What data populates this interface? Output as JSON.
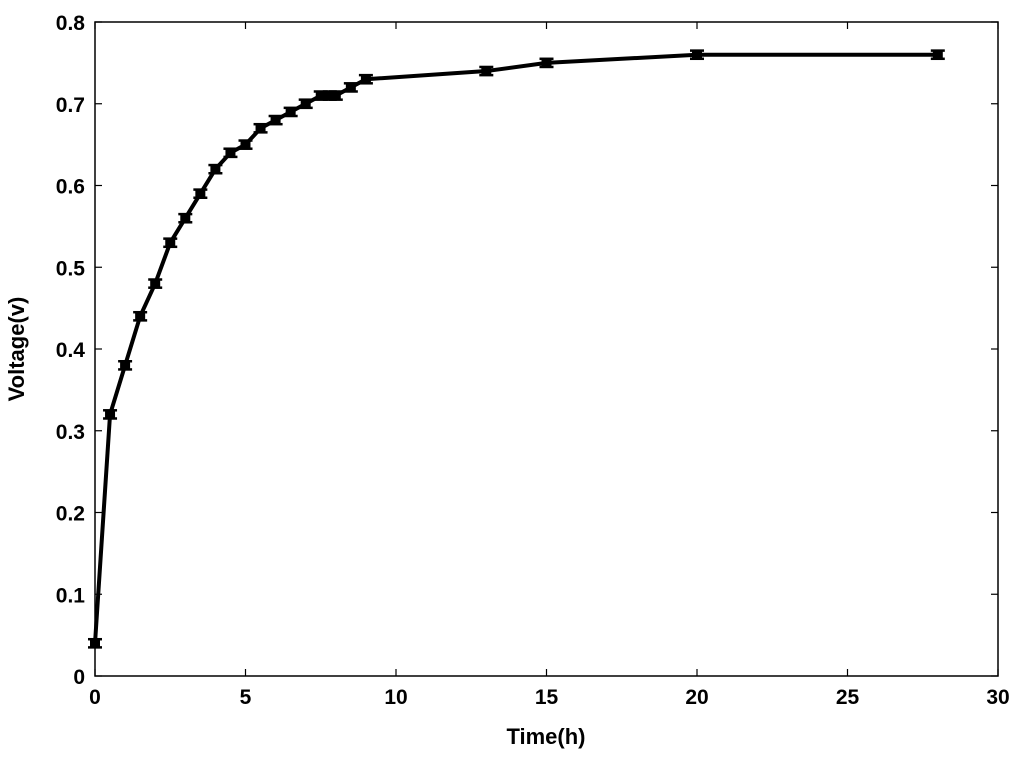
{
  "chart_data": {
    "type": "line",
    "title": "",
    "xlabel": "Time(h)",
    "ylabel": "Voltage(v)",
    "xlim": [
      0,
      30
    ],
    "ylim": [
      0,
      0.8
    ],
    "xticks": [
      0,
      5,
      10,
      15,
      20,
      25,
      30
    ],
    "yticks": [
      0,
      0.1,
      0.2,
      0.3,
      0.4,
      0.5,
      0.6,
      0.7,
      0.8
    ],
    "xtick_labels": [
      "0",
      "5",
      "10",
      "15",
      "20",
      "25",
      "30"
    ],
    "ytick_labels": [
      "0",
      "0.1",
      "0.2",
      "0.3",
      "0.4",
      "0.5",
      "0.6",
      "0.7",
      "0.8"
    ],
    "grid": false,
    "error_bars": true,
    "line_color": "#000000",
    "series": [
      {
        "x": [
          0,
          0.5,
          1,
          1.5,
          2,
          2.5,
          3,
          3.5,
          4,
          4.5,
          5,
          5.5,
          6,
          6.5,
          7,
          7.5,
          7.8,
          8,
          8.5,
          9,
          13,
          15,
          20,
          28
        ],
        "y": [
          0.04,
          0.32,
          0.38,
          0.44,
          0.48,
          0.53,
          0.56,
          0.59,
          0.62,
          0.64,
          0.65,
          0.67,
          0.68,
          0.69,
          0.7,
          0.71,
          0.71,
          0.71,
          0.72,
          0.73,
          0.74,
          0.75,
          0.76,
          0.76
        ],
        "error": 0.005
      }
    ]
  }
}
